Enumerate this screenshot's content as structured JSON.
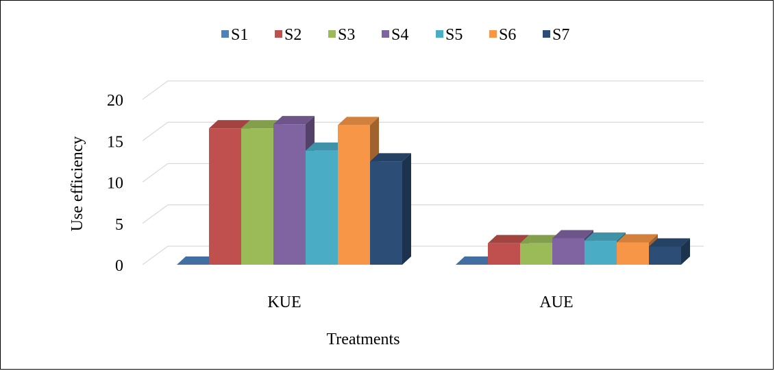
{
  "chart_data": {
    "type": "bar",
    "title": "",
    "xlabel": "Treatments",
    "ylabel": "Use efficiency",
    "ylim": [
      0,
      20
    ],
    "yticks": [
      "0",
      "5",
      "10",
      "15",
      "20"
    ],
    "categories": [
      "KUE",
      "AUE"
    ],
    "grid": true,
    "legend_position": "top",
    "series": [
      {
        "name": "S1",
        "color": "#4F81BD",
        "values": [
          0,
          0
        ]
      },
      {
        "name": "S2",
        "color": "#C0504D",
        "values": [
          16.5,
          2.6
        ]
      },
      {
        "name": "S3",
        "color": "#9BBB59",
        "values": [
          16.5,
          2.6
        ]
      },
      {
        "name": "S4",
        "color": "#8064A2",
        "values": [
          17.0,
          3.2
        ]
      },
      {
        "name": "S5",
        "color": "#4BACC6",
        "values": [
          13.8,
          2.9
        ]
      },
      {
        "name": "S6",
        "color": "#F79646",
        "values": [
          16.9,
          2.7
        ]
      },
      {
        "name": "S7",
        "color": "#2C4D75",
        "values": [
          12.5,
          2.2
        ]
      }
    ]
  }
}
